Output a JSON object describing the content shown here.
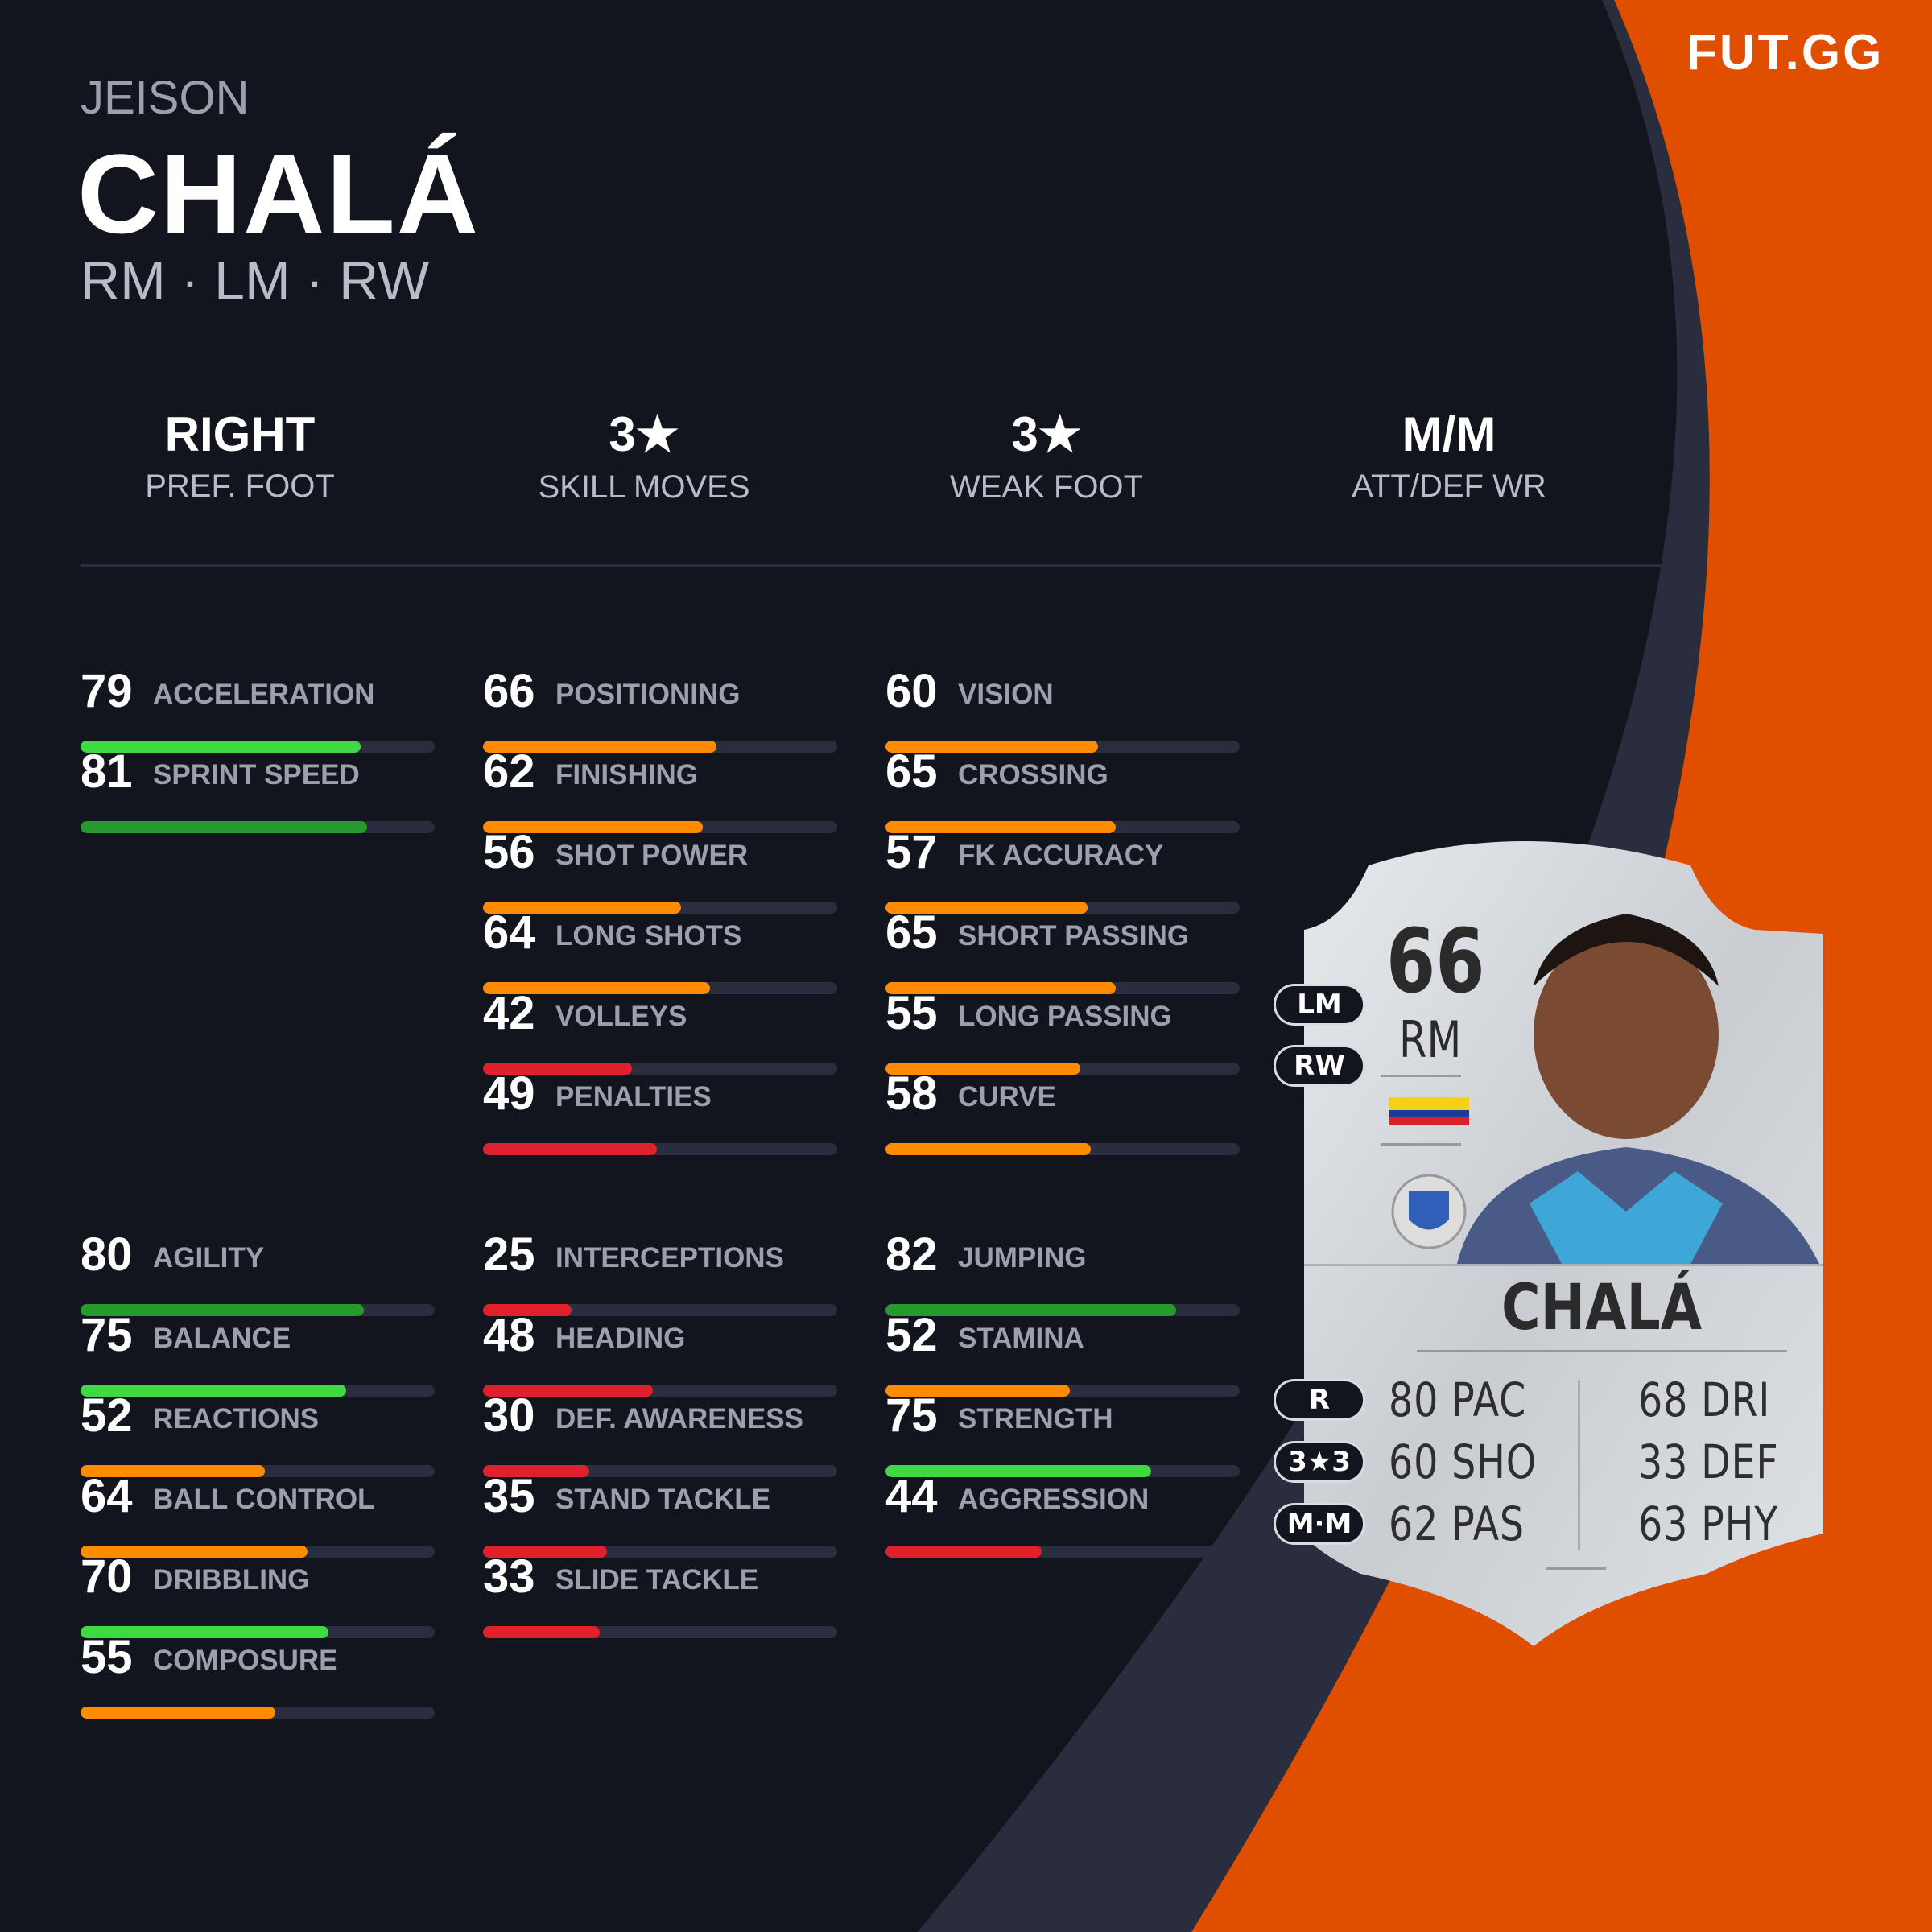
{
  "brand": {
    "logo": "FUT.GG",
    "accent": "#e04e00",
    "background": "#12151e",
    "track": "#2a2d3d"
  },
  "player": {
    "first_name": "JEISON",
    "last_name": "CHALÁ",
    "positions": "RM · LM · RW"
  },
  "traits": [
    {
      "value": "RIGHT",
      "label": "PREF. FOOT"
    },
    {
      "value": "3★",
      "label": "SKILL MOVES"
    },
    {
      "value": "3★",
      "label": "WEAK FOOT"
    },
    {
      "value": "M/M",
      "label": "ATT/DEF WR"
    }
  ],
  "stat_colors": {
    "elite": "#279a2e",
    "good": "#3fd943",
    "average": "#ff8c00",
    "poor": "#e0202a"
  },
  "stat_groups": [
    [
      {
        "v": 79,
        "n": "ACCELERATION"
      },
      {
        "v": 81,
        "n": "SPRINT SPEED"
      }
    ],
    [
      {
        "v": 66,
        "n": "POSITIONING"
      },
      {
        "v": 62,
        "n": "FINISHING"
      },
      {
        "v": 56,
        "n": "SHOT POWER"
      },
      {
        "v": 64,
        "n": "LONG SHOTS"
      },
      {
        "v": 42,
        "n": "VOLLEYS"
      },
      {
        "v": 49,
        "n": "PENALTIES"
      }
    ],
    [
      {
        "v": 60,
        "n": "VISION"
      },
      {
        "v": 65,
        "n": "CROSSING"
      },
      {
        "v": 57,
        "n": "FK ACCURACY"
      },
      {
        "v": 65,
        "n": "SHORT PASSING"
      },
      {
        "v": 55,
        "n": "LONG PASSING"
      },
      {
        "v": 58,
        "n": "CURVE"
      }
    ],
    [
      {
        "v": 80,
        "n": "AGILITY"
      },
      {
        "v": 75,
        "n": "BALANCE"
      },
      {
        "v": 52,
        "n": "REACTIONS"
      },
      {
        "v": 64,
        "n": "BALL CONTROL"
      },
      {
        "v": 70,
        "n": "DRIBBLING"
      },
      {
        "v": 55,
        "n": "COMPOSURE"
      }
    ],
    [
      {
        "v": 25,
        "n": "INTERCEPTIONS"
      },
      {
        "v": 48,
        "n": "HEADING"
      },
      {
        "v": 30,
        "n": "DEF. AWARENESS"
      },
      {
        "v": 35,
        "n": "STAND TACKLE"
      },
      {
        "v": 33,
        "n": "SLIDE TACKLE"
      }
    ],
    [
      {
        "v": 82,
        "n": "JUMPING"
      },
      {
        "v": 52,
        "n": "STAMINA"
      },
      {
        "v": 75,
        "n": "STRENGTH"
      },
      {
        "v": 44,
        "n": "AGGRESSION"
      }
    ]
  ],
  "card": {
    "rating": "66",
    "position": "RM",
    "name": "CHALÁ",
    "alt_positions": [
      "LM",
      "RW"
    ],
    "foot": "R",
    "skills_weak": "3★3",
    "work_rates": "M·M",
    "nation": "Ecuador flag",
    "club": "Godoy Cruz badge",
    "face_stats": [
      {
        "v": "80",
        "n": "PAC"
      },
      {
        "v": "60",
        "n": "SHO"
      },
      {
        "v": "62",
        "n": "PAS"
      },
      {
        "v": "68",
        "n": "DRI"
      },
      {
        "v": "33",
        "n": "DEF"
      },
      {
        "v": "63",
        "n": "PHY"
      }
    ]
  }
}
